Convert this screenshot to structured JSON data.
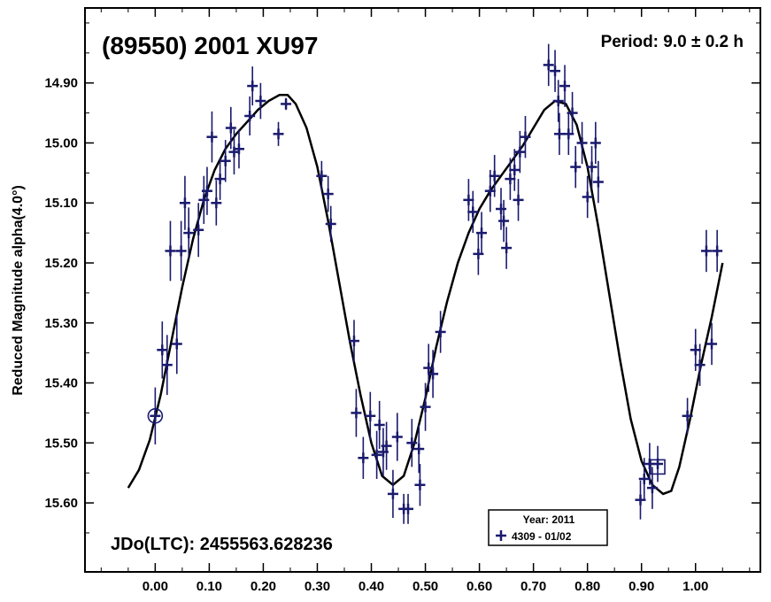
{
  "chart_data": {
    "type": "scatter",
    "title": "(89550) 2001 XU97",
    "period_label": "Period: 9.0 ± 0.2 h",
    "jdo_label": "JDo(LTC): 2455563.628236",
    "ylabel": "Reduced Magnitude alpha(4.0°)",
    "xlabel": "",
    "xlim": [
      -0.13,
      1.12
    ],
    "ylim": [
      15.715,
      14.775
    ],
    "y_inverted": true,
    "x_ticks": [
      "0.00",
      "0.10",
      "0.20",
      "0.30",
      "0.40",
      "0.50",
      "0.60",
      "0.70",
      "0.80",
      "0.90",
      "1.00"
    ],
    "y_ticks": [
      "14.90",
      "15.00",
      "15.10",
      "15.20",
      "15.30",
      "15.40",
      "15.50",
      "15.60"
    ],
    "legend": {
      "title": "Year: 2011",
      "entries": [
        "4309 - 01/02"
      ],
      "placement": "bottom-right"
    },
    "colors": {
      "data": "#1a1a6e",
      "fit": "#000000",
      "frame": "#000000"
    },
    "series": [
      {
        "name": "4309 - 01/02",
        "points": [
          [
            0.0,
            15.455,
            0.095
          ],
          [
            0.013,
            15.345,
            0.095
          ],
          [
            0.022,
            15.37,
            0.1
          ],
          [
            0.028,
            15.18,
            0.1
          ],
          [
            0.04,
            15.335,
            0.1
          ],
          [
            0.048,
            15.18,
            0.1
          ],
          [
            0.055,
            15.1,
            0.09
          ],
          [
            0.062,
            15.15,
            0.085
          ],
          [
            0.08,
            15.145,
            0.09
          ],
          [
            0.09,
            15.095,
            0.08
          ],
          [
            0.096,
            15.08,
            0.08
          ],
          [
            0.105,
            14.99,
            0.085
          ],
          [
            0.113,
            15.1,
            0.075
          ],
          [
            0.12,
            15.06,
            0.07
          ],
          [
            0.13,
            15.03,
            0.07
          ],
          [
            0.14,
            14.975,
            0.07
          ],
          [
            0.146,
            15.015,
            0.075
          ],
          [
            0.155,
            15.01,
            0.065
          ],
          [
            0.175,
            14.955,
            0.065
          ],
          [
            0.18,
            14.905,
            0.065
          ],
          [
            0.195,
            14.93,
            0.06
          ],
          [
            0.228,
            14.985,
            0.04
          ],
          [
            0.242,
            14.935,
            0.02
          ],
          [
            0.308,
            15.055,
            0.05
          ],
          [
            0.32,
            15.085,
            0.06
          ],
          [
            0.325,
            15.135,
            0.06
          ],
          [
            0.368,
            15.33,
            0.07
          ],
          [
            0.372,
            15.45,
            0.08
          ],
          [
            0.385,
            15.525,
            0.07
          ],
          [
            0.398,
            15.455,
            0.08
          ],
          [
            0.41,
            15.52,
            0.08
          ],
          [
            0.415,
            15.47,
            0.08
          ],
          [
            0.422,
            15.515,
            0.08
          ],
          [
            0.428,
            15.505,
            0.08
          ],
          [
            0.44,
            15.585,
            0.08
          ],
          [
            0.448,
            15.49,
            0.08
          ],
          [
            0.46,
            15.61,
            0.05
          ],
          [
            0.468,
            15.61,
            0.05
          ],
          [
            0.475,
            15.5,
            0.08
          ],
          [
            0.488,
            15.51,
            0.08
          ],
          [
            0.49,
            15.57,
            0.07
          ],
          [
            0.5,
            15.44,
            0.08
          ],
          [
            0.506,
            15.375,
            0.08
          ],
          [
            0.514,
            15.385,
            0.08
          ],
          [
            0.528,
            15.315,
            0.07
          ],
          [
            0.58,
            15.095,
            0.07
          ],
          [
            0.588,
            15.115,
            0.07
          ],
          [
            0.598,
            15.185,
            0.07
          ],
          [
            0.604,
            15.15,
            0.07
          ],
          [
            0.62,
            15.08,
            0.07
          ],
          [
            0.628,
            15.055,
            0.07
          ],
          [
            0.64,
            15.11,
            0.07
          ],
          [
            0.645,
            15.13,
            0.07
          ],
          [
            0.65,
            15.175,
            0.07
          ],
          [
            0.657,
            15.06,
            0.07
          ],
          [
            0.665,
            15.045,
            0.07
          ],
          [
            0.672,
            15.095,
            0.07
          ],
          [
            0.675,
            15.015,
            0.07
          ],
          [
            0.685,
            14.99,
            0.07
          ],
          [
            0.728,
            14.87,
            0.07
          ],
          [
            0.74,
            14.88,
            0.07
          ],
          [
            0.746,
            14.93,
            0.07
          ],
          [
            0.748,
            14.985,
            0.07
          ],
          [
            0.758,
            14.905,
            0.07
          ],
          [
            0.765,
            14.985,
            0.07
          ],
          [
            0.772,
            14.95,
            0.07
          ],
          [
            0.778,
            15.04,
            0.07
          ],
          [
            0.79,
            15.0,
            0.07
          ],
          [
            0.8,
            15.09,
            0.07
          ],
          [
            0.808,
            15.04,
            0.07
          ],
          [
            0.815,
            15.0,
            0.07
          ],
          [
            0.82,
            15.065,
            0.07
          ],
          [
            0.898,
            15.595,
            0.065
          ],
          [
            0.905,
            15.56,
            0.07
          ],
          [
            0.915,
            15.535,
            0.07
          ],
          [
            0.92,
            15.575,
            0.07
          ],
          [
            0.93,
            15.535,
            0.06
          ],
          [
            0.985,
            15.455,
            0.06
          ],
          [
            1.0,
            15.345,
            0.07
          ],
          [
            1.008,
            15.37,
            0.07
          ],
          [
            1.02,
            15.18,
            0.07
          ],
          [
            1.03,
            15.335,
            0.07
          ],
          [
            1.04,
            15.18,
            0.07
          ]
        ]
      }
    ],
    "fit_curve": [
      [
        -0.05,
        15.575
      ],
      [
        -0.03,
        15.545
      ],
      [
        -0.01,
        15.495
      ],
      [
        0.01,
        15.42
      ],
      [
        0.03,
        15.33
      ],
      [
        0.05,
        15.24
      ],
      [
        0.07,
        15.16
      ],
      [
        0.09,
        15.095
      ],
      [
        0.11,
        15.045
      ],
      [
        0.13,
        15.01
      ],
      [
        0.15,
        14.985
      ],
      [
        0.17,
        14.965
      ],
      [
        0.19,
        14.945
      ],
      [
        0.21,
        14.93
      ],
      [
        0.23,
        14.92
      ],
      [
        0.245,
        14.92
      ],
      [
        0.26,
        14.935
      ],
      [
        0.28,
        14.975
      ],
      [
        0.3,
        15.04
      ],
      [
        0.32,
        15.13
      ],
      [
        0.34,
        15.23
      ],
      [
        0.36,
        15.33
      ],
      [
        0.38,
        15.42
      ],
      [
        0.4,
        15.5
      ],
      [
        0.42,
        15.555
      ],
      [
        0.44,
        15.57
      ],
      [
        0.46,
        15.555
      ],
      [
        0.48,
        15.5
      ],
      [
        0.5,
        15.425
      ],
      [
        0.52,
        15.34
      ],
      [
        0.54,
        15.265
      ],
      [
        0.56,
        15.2
      ],
      [
        0.58,
        15.15
      ],
      [
        0.6,
        15.11
      ],
      [
        0.62,
        15.08
      ],
      [
        0.64,
        15.055
      ],
      [
        0.66,
        15.03
      ],
      [
        0.68,
        15.005
      ],
      [
        0.7,
        14.975
      ],
      [
        0.72,
        14.945
      ],
      [
        0.74,
        14.93
      ],
      [
        0.76,
        14.935
      ],
      [
        0.78,
        14.97
      ],
      [
        0.8,
        15.04
      ],
      [
        0.82,
        15.14
      ],
      [
        0.84,
        15.25
      ],
      [
        0.86,
        15.36
      ],
      [
        0.88,
        15.46
      ],
      [
        0.9,
        15.53
      ],
      [
        0.92,
        15.57
      ],
      [
        0.94,
        15.585
      ],
      [
        0.955,
        15.58
      ],
      [
        0.97,
        15.54
      ],
      [
        0.99,
        15.46
      ],
      [
        1.01,
        15.37
      ],
      [
        1.03,
        15.29
      ],
      [
        1.05,
        15.2
      ]
    ],
    "markers": {
      "circle": [
        0.0,
        15.455
      ],
      "square": [
        0.93,
        15.54
      ]
    }
  }
}
